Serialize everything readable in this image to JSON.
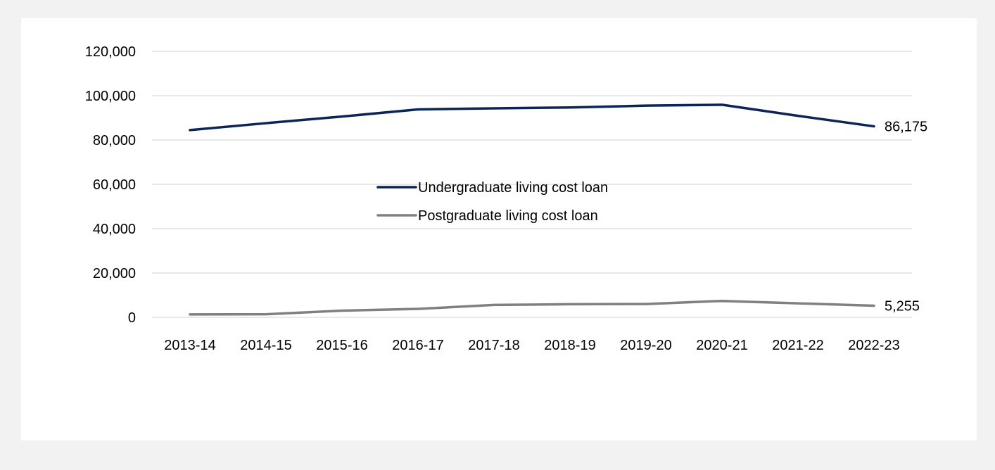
{
  "chart_data": {
    "type": "line",
    "title": "",
    "xlabel": "",
    "ylabel": "",
    "categories": [
      "2013-14",
      "2014-15",
      "2015-16",
      "2016-17",
      "2017-18",
      "2018-19",
      "2019-20",
      "2020-21",
      "2021-22",
      "2022-23"
    ],
    "ylim": [
      0,
      120000
    ],
    "yticks": [
      0,
      20000,
      40000,
      60000,
      80000,
      100000,
      120000
    ],
    "ytick_labels": [
      "0",
      "20,000",
      "40,000",
      "60,000",
      "80,000",
      "100,000",
      "120,000"
    ],
    "grid": true,
    "legend_position": "center",
    "series": [
      {
        "name": "Undergraduate living cost loan",
        "color": "#0b2656",
        "values": [
          84500,
          87600,
          90600,
          93800,
          94300,
          94700,
          95500,
          95900,
          90900,
          86175
        ],
        "end_label": "86,175"
      },
      {
        "name": "Postgraduate living cost loan",
        "color": "#808080",
        "values": [
          1300,
          1400,
          3000,
          3800,
          5600,
          5900,
          6000,
          7400,
          6300,
          5255
        ],
        "end_label": "5,255"
      }
    ]
  }
}
